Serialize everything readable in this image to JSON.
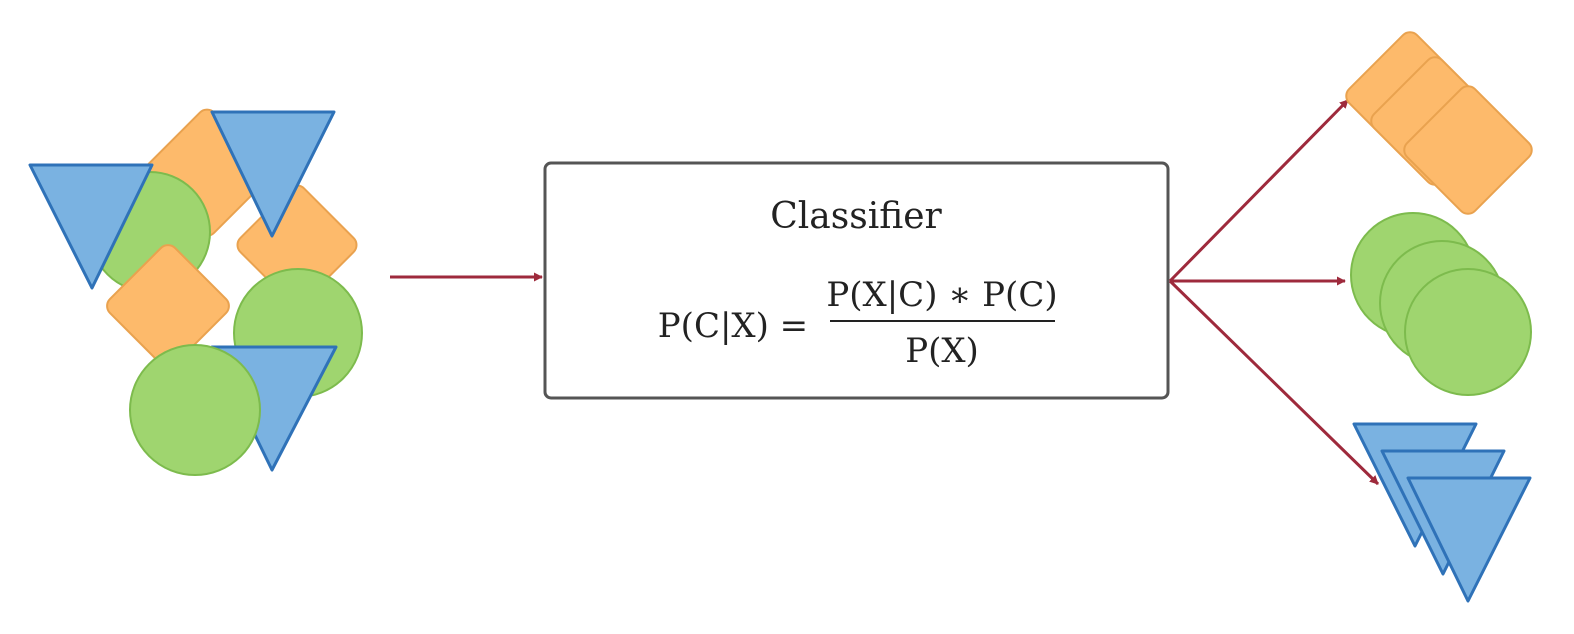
{
  "classifier": {
    "title": "Classifier",
    "formula": {
      "lhs": "P(C|X) =",
      "numerator": "P(X|C) ∗ P(C)",
      "denominator": "P(X)"
    }
  },
  "colors": {
    "orange_fill": "#FDBA6B",
    "orange_stroke": "#E9A24F",
    "green_fill": "#9FD56F",
    "green_stroke": "#7DBB4D",
    "blue_fill": "#7AB2E1",
    "blue_stroke": "#2F72B8",
    "arrow": "#9E2A3C",
    "box_stroke": "#555555"
  },
  "shapes": {
    "input_mix": [
      "triangle",
      "square",
      "circle"
    ],
    "output_classes": [
      "square",
      "circle",
      "triangle"
    ]
  }
}
